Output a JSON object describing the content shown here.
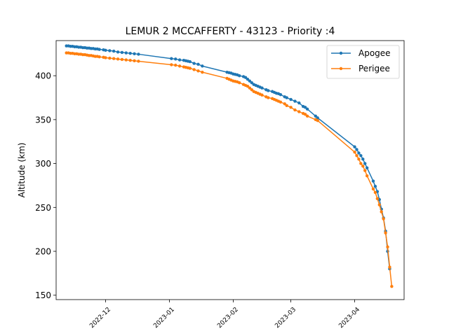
{
  "chart_data": {
    "type": "line",
    "title": "LEMUR 2 MCCAFFERTY - 43123 - Priority :4",
    "xlabel": "",
    "ylabel": "Altitude (km)",
    "x_type": "date",
    "xlim": [
      "2022-11-07",
      "2023-04-25"
    ],
    "ylim": [
      145,
      440
    ],
    "y_ticks": [
      150,
      200,
      250,
      300,
      350,
      400
    ],
    "x_ticks": [
      "2022-12",
      "2023-01",
      "2023-02",
      "2023-03",
      "2023-04"
    ],
    "grid": false,
    "legend_position": "top-right",
    "series": [
      {
        "name": "Apogee",
        "color": "#1f77b4",
        "x": [
          "2022-11-12",
          "2022-11-13",
          "2022-11-14",
          "2022-11-15",
          "2022-11-16",
          "2022-11-17",
          "2022-11-18",
          "2022-11-19",
          "2022-11-20",
          "2022-11-21",
          "2022-11-22",
          "2022-11-23",
          "2022-11-24",
          "2022-11-25",
          "2022-11-26",
          "2022-11-27",
          "2022-11-28",
          "2022-11-30",
          "2022-12-01",
          "2022-12-03",
          "2022-12-05",
          "2022-12-07",
          "2022-12-09",
          "2022-12-11",
          "2022-12-13",
          "2022-12-15",
          "2022-12-17",
          "2023-01-02",
          "2023-01-04",
          "2023-01-06",
          "2023-01-08",
          "2023-01-09",
          "2023-01-10",
          "2023-01-11",
          "2023-01-13",
          "2023-01-15",
          "2023-01-17",
          "2023-01-29",
          "2023-01-30",
          "2023-01-31",
          "2023-02-01",
          "2023-02-02",
          "2023-02-03",
          "2023-02-04",
          "2023-02-06",
          "2023-02-07",
          "2023-02-08",
          "2023-02-09",
          "2023-02-10",
          "2023-02-11",
          "2023-02-12",
          "2023-02-13",
          "2023-02-14",
          "2023-02-15",
          "2023-02-17",
          "2023-02-18",
          "2023-02-20",
          "2023-02-21",
          "2023-02-22",
          "2023-02-23",
          "2023-02-24",
          "2023-02-26",
          "2023-02-27",
          "2023-03-01",
          "2023-03-03",
          "2023-03-05",
          "2023-03-07",
          "2023-03-08",
          "2023-03-09",
          "2023-03-13",
          "2023-03-14",
          "2023-04-01",
          "2023-04-02",
          "2023-04-03",
          "2023-04-04",
          "2023-04-05",
          "2023-04-06",
          "2023-04-07",
          "2023-04-10",
          "2023-04-11",
          "2023-04-12",
          "2023-04-13",
          "2023-04-14",
          "2023-04-15",
          "2023-04-16",
          "2023-04-17",
          "2023-04-18"
        ],
        "values": [
          434,
          434,
          433.5,
          433.5,
          433,
          433,
          432.5,
          432.5,
          432,
          432,
          431.5,
          431.5,
          431,
          431,
          430.5,
          430.5,
          430,
          429.5,
          429,
          428.5,
          428,
          427,
          426.5,
          426,
          425.5,
          425,
          424.5,
          419.5,
          419,
          418,
          417.5,
          417,
          416.5,
          416,
          414,
          413,
          411,
          404,
          403.5,
          403,
          402,
          401.5,
          401,
          400,
          399,
          398,
          396,
          394,
          392,
          390,
          389,
          388,
          387,
          386,
          384,
          383,
          382,
          381,
          380,
          379.5,
          378.5,
          376,
          375,
          373,
          371,
          369,
          365,
          364,
          362,
          354,
          352,
          319,
          316,
          312,
          309,
          305,
          300,
          295,
          280,
          274,
          268,
          259,
          248,
          238,
          223,
          200,
          180
        ]
      },
      {
        "name": "Perigee",
        "color": "#ff7f0e",
        "x": [
          "2022-11-12",
          "2022-11-13",
          "2022-11-14",
          "2022-11-15",
          "2022-11-16",
          "2022-11-17",
          "2022-11-18",
          "2022-11-19",
          "2022-11-20",
          "2022-11-21",
          "2022-11-22",
          "2022-11-23",
          "2022-11-24",
          "2022-11-25",
          "2022-11-26",
          "2022-11-27",
          "2022-11-28",
          "2022-11-30",
          "2022-12-01",
          "2022-12-03",
          "2022-12-05",
          "2022-12-07",
          "2022-12-09",
          "2022-12-11",
          "2022-12-13",
          "2022-12-15",
          "2022-12-17",
          "2023-01-02",
          "2023-01-04",
          "2023-01-06",
          "2023-01-08",
          "2023-01-09",
          "2023-01-10",
          "2023-01-11",
          "2023-01-13",
          "2023-01-15",
          "2023-01-17",
          "2023-01-29",
          "2023-01-30",
          "2023-01-31",
          "2023-02-01",
          "2023-02-02",
          "2023-02-03",
          "2023-02-04",
          "2023-02-06",
          "2023-02-07",
          "2023-02-08",
          "2023-02-09",
          "2023-02-10",
          "2023-02-11",
          "2023-02-12",
          "2023-02-13",
          "2023-02-14",
          "2023-02-15",
          "2023-02-17",
          "2023-02-18",
          "2023-02-20",
          "2023-02-21",
          "2023-02-22",
          "2023-02-23",
          "2023-02-24",
          "2023-02-26",
          "2023-02-27",
          "2023-03-01",
          "2023-03-03",
          "2023-03-05",
          "2023-03-07",
          "2023-03-08",
          "2023-03-09",
          "2023-03-13",
          "2023-03-14",
          "2023-04-01",
          "2023-04-02",
          "2023-04-03",
          "2023-04-04",
          "2023-04-05",
          "2023-04-06",
          "2023-04-07",
          "2023-04-10",
          "2023-04-11",
          "2023-04-12",
          "2023-04-13",
          "2023-04-14",
          "2023-04-15",
          "2023-04-16",
          "2023-04-17",
          "2023-04-18",
          "2023-04-19"
        ],
        "values": [
          426,
          426,
          425.5,
          425.5,
          425,
          425,
          424.5,
          424.5,
          424,
          424,
          423.5,
          423,
          423,
          422.5,
          422,
          422,
          421.5,
          421,
          420.5,
          420,
          419.5,
          419,
          418.5,
          418,
          417.5,
          417,
          416.5,
          412.5,
          412,
          411,
          410,
          409.5,
          409,
          408.5,
          407,
          405.5,
          404,
          397,
          396,
          395,
          394,
          393.5,
          393,
          392,
          390,
          389,
          388,
          386,
          384,
          382,
          381,
          380,
          379,
          378,
          376,
          375,
          374,
          373,
          372,
          371,
          370,
          368,
          366,
          364,
          361,
          359,
          357,
          356,
          354,
          350,
          349,
          313,
          309,
          305,
          300,
          297,
          292,
          286,
          271,
          267,
          260,
          253,
          245,
          237,
          221,
          205,
          182,
          160
        ]
      }
    ]
  }
}
